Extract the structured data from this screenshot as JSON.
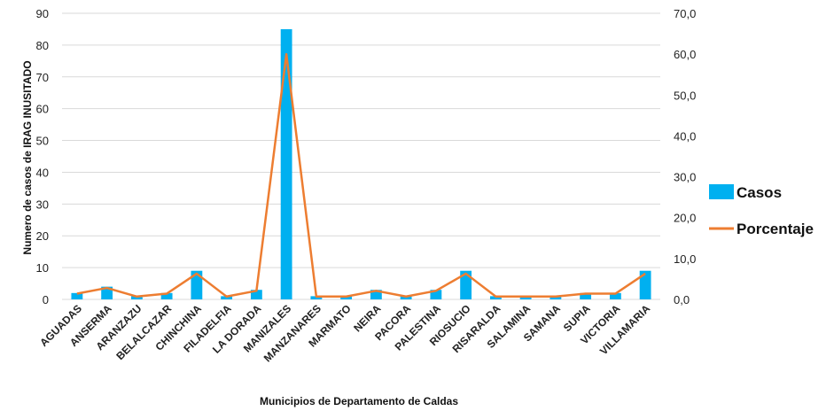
{
  "chart_data": {
    "type": "bar",
    "categories": [
      "AGUADAS",
      "ANSERMA",
      "ARANZAZU",
      "BELALCAZAR",
      "CHINCHINA",
      "FILADELFIA",
      "LA DORADA",
      "MANIZALES",
      "MANZANARES",
      "MARMATO",
      "NEIRA",
      "PACORA",
      "PALESTINA",
      "RIOSUCIO",
      "RISARALDA",
      "SALAMINA",
      "SAMANA",
      "SUPIA",
      "VICTORIA",
      "VILLAMARIA"
    ],
    "series": [
      {
        "name": "Casos",
        "type": "bar",
        "axis": "left",
        "color": "#00B0F0",
        "values": [
          2,
          4,
          1,
          2,
          9,
          1,
          3,
          85,
          1,
          1,
          3,
          1,
          3,
          9,
          1,
          1,
          1,
          2,
          2,
          9
        ]
      },
      {
        "name": "Porcentaje",
        "type": "line",
        "axis": "right",
        "color": "#ED7D31",
        "values": [
          1.4,
          2.8,
          0.7,
          1.4,
          6.3,
          0.7,
          2.1,
          60.0,
          0.7,
          0.7,
          2.1,
          0.7,
          2.1,
          6.3,
          0.7,
          0.7,
          0.7,
          1.4,
          1.4,
          6.3
        ]
      }
    ],
    "ylabel": "Numero de casos de IRAG INUSITADO",
    "xlabel": "Municipios de Departamento de  Caldas",
    "ylim": [
      0,
      90
    ],
    "y_ticks": [
      "0",
      "10",
      "20",
      "30",
      "40",
      "50",
      "60",
      "70",
      "80",
      "90"
    ],
    "y2lim": [
      0,
      70
    ],
    "y2_ticks": [
      "0,0",
      "10,0",
      "20,0",
      "30,0",
      "40,0",
      "50,0",
      "60,0",
      "70,0"
    ],
    "grid": true,
    "legend_position": "right"
  }
}
